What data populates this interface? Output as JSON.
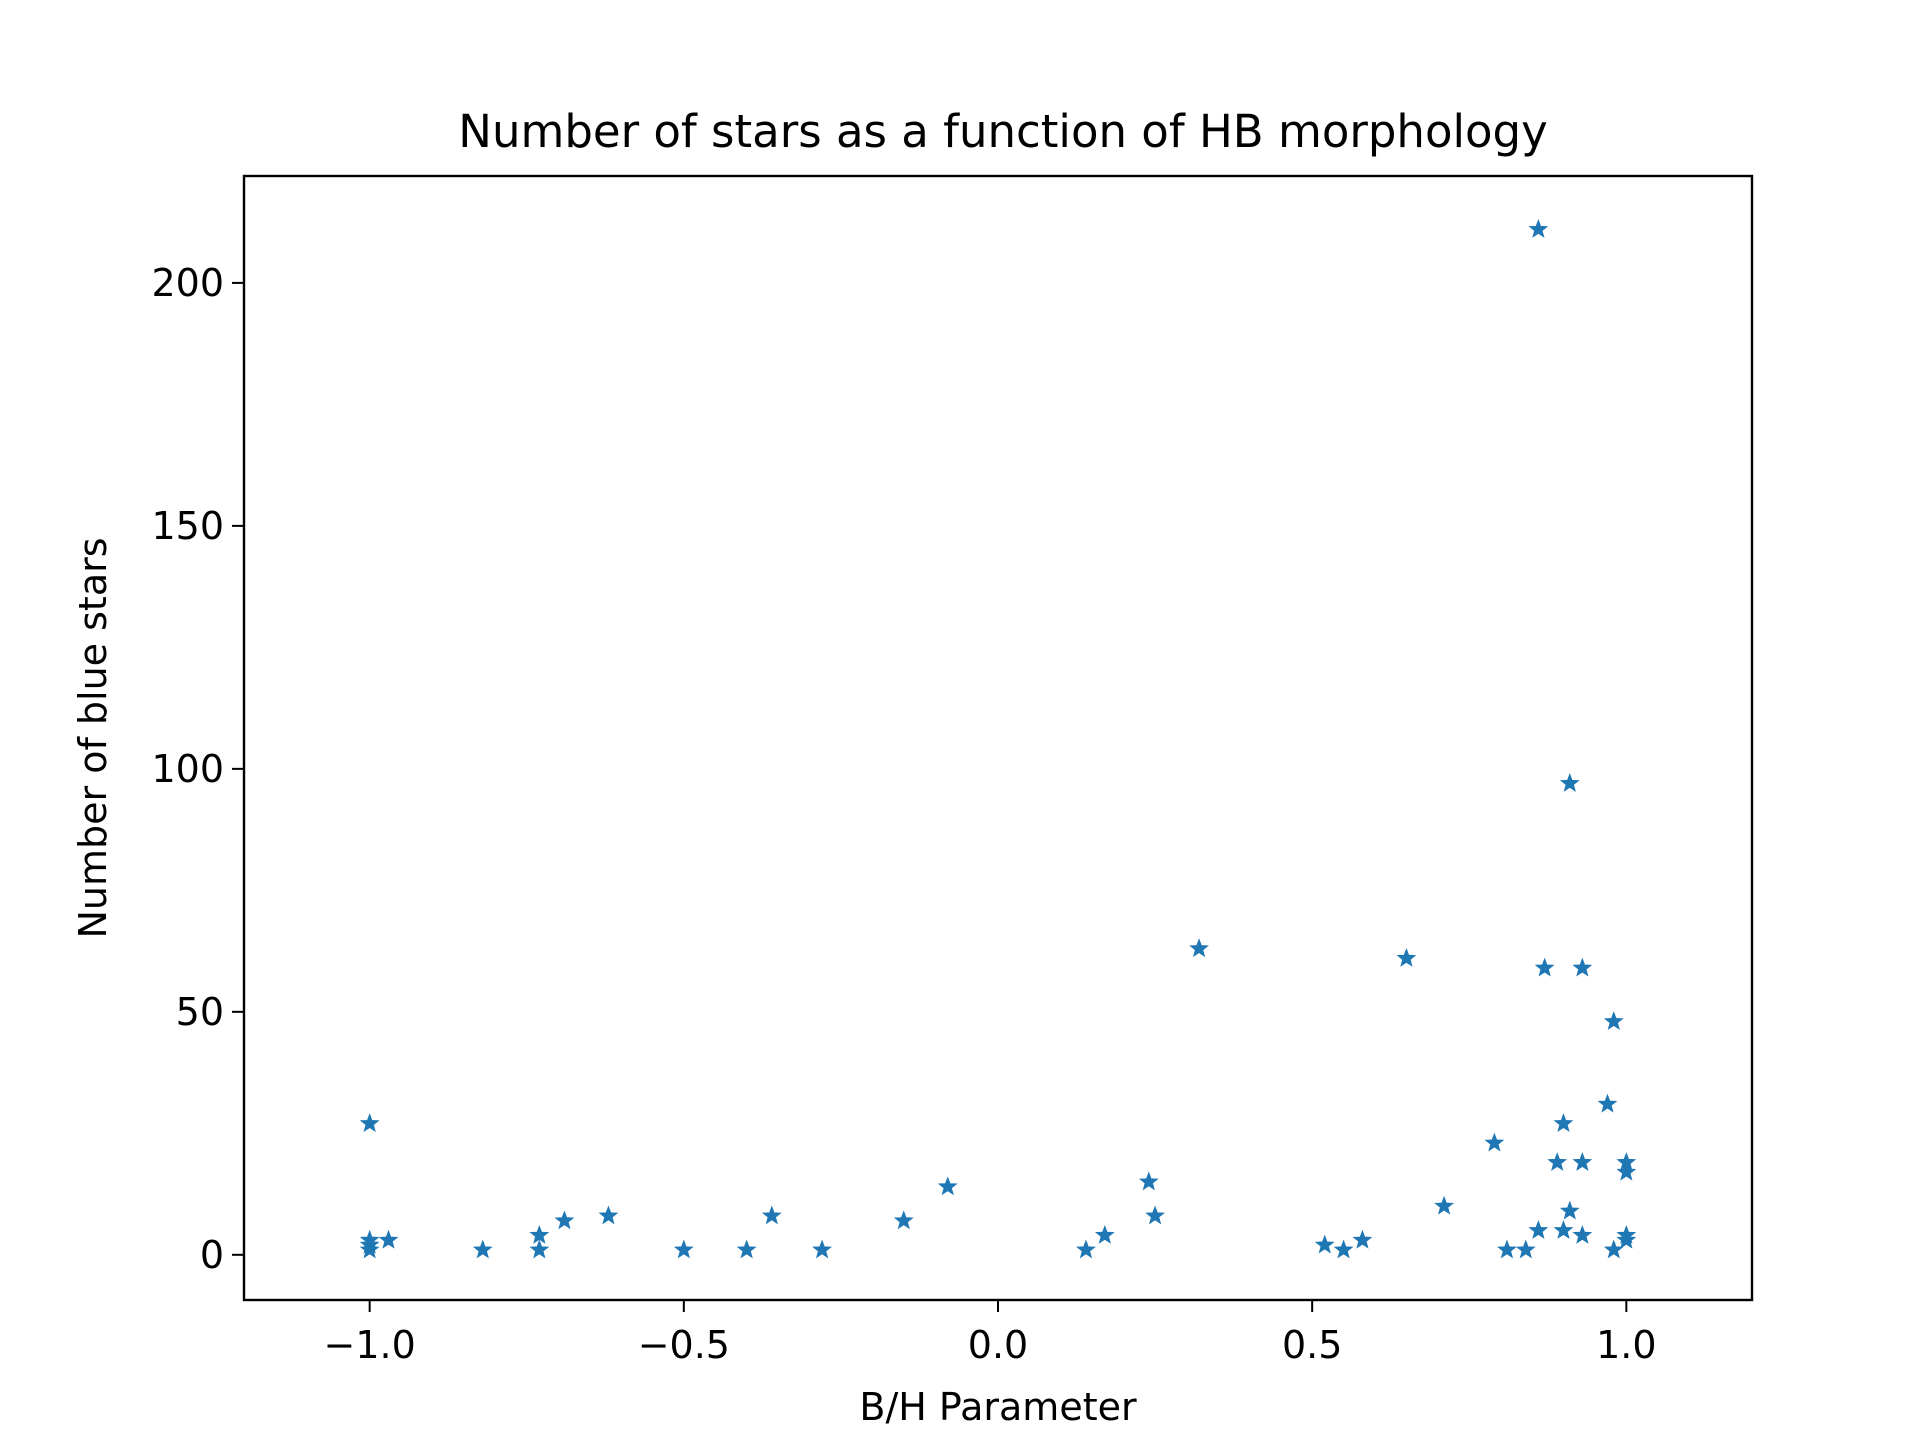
{
  "chart_data": {
    "type": "scatter",
    "title": "Number of stars as a function of HB morphology",
    "xlabel": "B/H Parameter",
    "ylabel": "Number of blue stars",
    "xlim": [
      -1.2,
      1.2
    ],
    "ylim": [
      -9.3,
      222
    ],
    "xticks": [
      -1.0,
      -0.5,
      0.0,
      0.5,
      1.0
    ],
    "xtick_labels": [
      "−1.0",
      "−0.5",
      "0.0",
      "0.5",
      "1.0"
    ],
    "yticks": [
      0,
      50,
      100,
      150,
      200
    ],
    "ytick_labels": [
      "0",
      "50",
      "100",
      "150",
      "200"
    ],
    "grid": false,
    "marker": "star",
    "color": "#1f77b4",
    "series": [
      {
        "points": [
          [
            -1.0,
            27
          ],
          [
            -1.0,
            3
          ],
          [
            -1.0,
            2
          ],
          [
            -1.0,
            1
          ],
          [
            -0.97,
            3
          ],
          [
            -0.82,
            1
          ],
          [
            -0.73,
            4
          ],
          [
            -0.73,
            1
          ],
          [
            -0.69,
            7
          ],
          [
            -0.62,
            8
          ],
          [
            -0.5,
            1
          ],
          [
            -0.4,
            1
          ],
          [
            -0.36,
            8
          ],
          [
            -0.28,
            1
          ],
          [
            -0.15,
            7
          ],
          [
            -0.08,
            14
          ],
          [
            0.14,
            1
          ],
          [
            0.17,
            4
          ],
          [
            0.24,
            15
          ],
          [
            0.25,
            8
          ],
          [
            0.32,
            63
          ],
          [
            0.52,
            2
          ],
          [
            0.55,
            1
          ],
          [
            0.58,
            3
          ],
          [
            0.65,
            61
          ],
          [
            0.71,
            10
          ],
          [
            0.79,
            23
          ],
          [
            0.81,
            1
          ],
          [
            0.84,
            1
          ],
          [
            0.86,
            211
          ],
          [
            0.86,
            5
          ],
          [
            0.87,
            59
          ],
          [
            0.89,
            19
          ],
          [
            0.9,
            27
          ],
          [
            0.9,
            5
          ],
          [
            0.91,
            97
          ],
          [
            0.91,
            9
          ],
          [
            0.93,
            59
          ],
          [
            0.93,
            19
          ],
          [
            0.93,
            4
          ],
          [
            0.97,
            31
          ],
          [
            0.98,
            48
          ],
          [
            0.98,
            1
          ],
          [
            1.0,
            19
          ],
          [
            1.0,
            17
          ],
          [
            1.0,
            4
          ],
          [
            1.0,
            3
          ]
        ]
      }
    ]
  }
}
